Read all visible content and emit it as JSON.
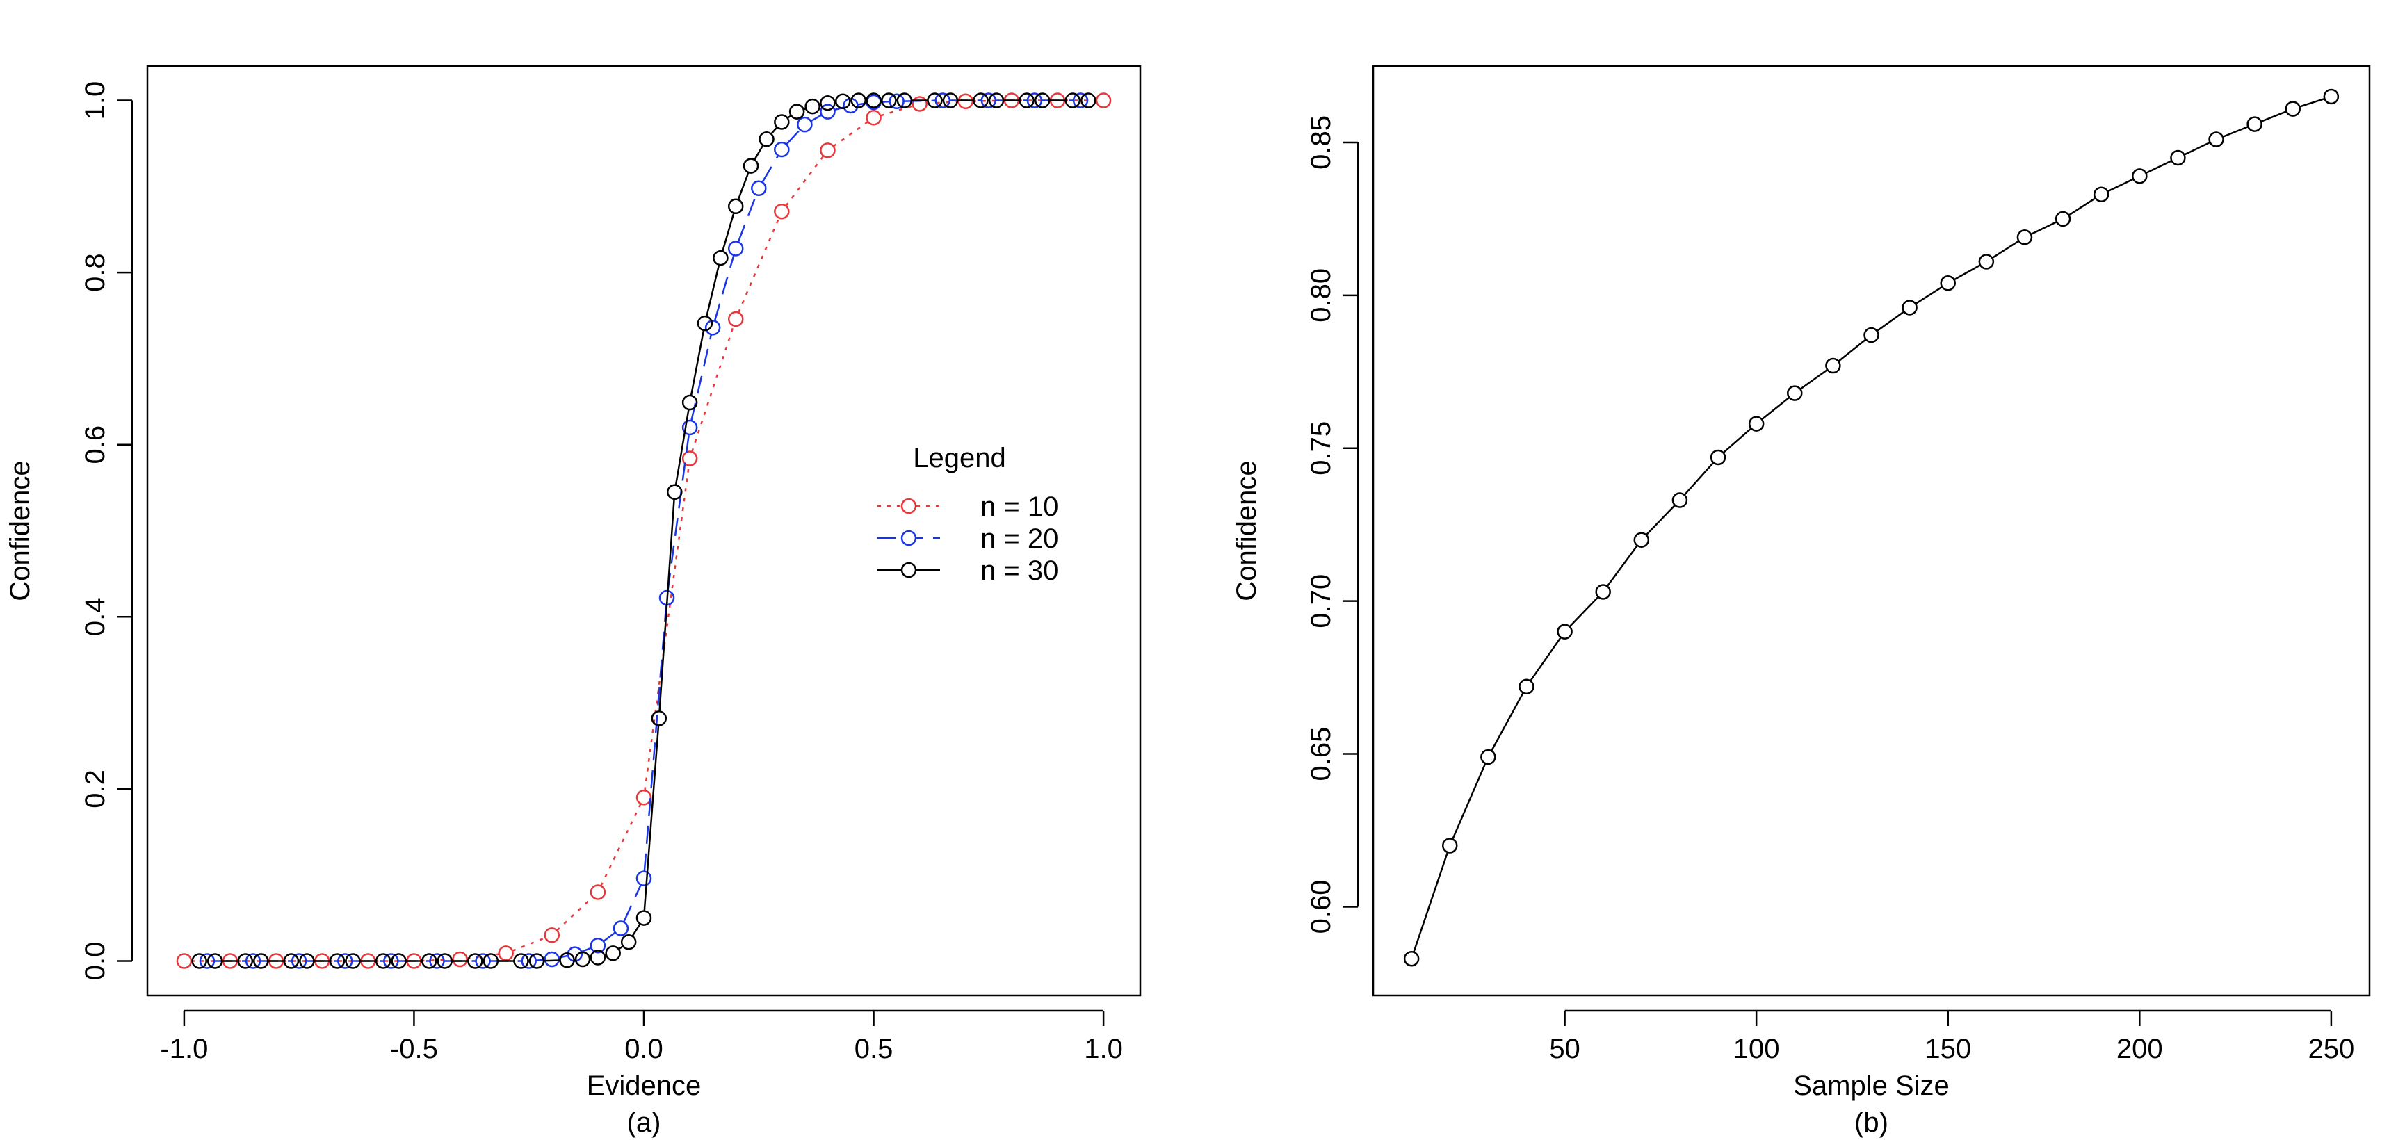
{
  "chart_data": [
    {
      "type": "line",
      "panel_label": "(a)",
      "title": "",
      "xlabel": "Evidence",
      "ylabel": "Confidence",
      "xlim": [
        -1.08,
        1.08
      ],
      "ylim": [
        -0.04,
        1.04
      ],
      "xticks": [
        -1.0,
        -0.5,
        0.0,
        0.5,
        1.0
      ],
      "xtick_labels": [
        "-1.0",
        "-0.5",
        "0.0",
        "0.5",
        "1.0"
      ],
      "yticks": [
        0.0,
        0.2,
        0.4,
        0.6,
        0.8,
        1.0
      ],
      "ytick_labels": [
        "0.0",
        "0.2",
        "0.4",
        "0.6",
        "0.8",
        "1.0"
      ],
      "grid": false,
      "legend": {
        "title": "Legend",
        "position": "center-right",
        "entries": [
          "n = 10",
          "n = 20",
          "n = 30"
        ]
      },
      "series": [
        {
          "name": "n = 10",
          "color": "#e8373a",
          "line_style": "dotted",
          "x": [
            -1.0,
            -0.9,
            -0.8,
            -0.7,
            -0.6,
            -0.5,
            -0.4,
            -0.3,
            -0.2,
            -0.1,
            0.0,
            0.1,
            0.2,
            0.3,
            0.4,
            0.5,
            0.6,
            0.7,
            0.8,
            0.9,
            1.0
          ],
          "y": [
            0.0,
            0.0,
            0.0,
            0.0,
            0.0,
            0.0,
            0.002,
            0.009,
            0.03,
            0.08,
            0.19,
            0.584,
            0.746,
            0.871,
            0.942,
            0.98,
            0.996,
            0.999,
            1.0,
            1.0,
            1.0
          ]
        },
        {
          "name": "n = 20",
          "color": "#1a35e8",
          "line_style": "dashed",
          "x": [
            -0.95,
            -0.85,
            -0.75,
            -0.65,
            -0.55,
            -0.45,
            -0.35,
            -0.25,
            -0.2,
            -0.15,
            -0.1,
            -0.05,
            0.0,
            0.05,
            0.1,
            0.15,
            0.2,
            0.25,
            0.3,
            0.35,
            0.4,
            0.45,
            0.5,
            0.55,
            0.65,
            0.75,
            0.85,
            0.95
          ],
          "y": [
            0.0,
            0.0,
            0.0,
            0.0,
            0.0,
            0.0,
            0.0,
            0.0,
            0.002,
            0.008,
            0.018,
            0.038,
            0.096,
            0.422,
            0.62,
            0.736,
            0.828,
            0.898,
            0.943,
            0.972,
            0.987,
            0.994,
            0.998,
            0.999,
            1.0,
            1.0,
            1.0,
            1.0
          ]
        },
        {
          "name": "n = 30",
          "color": "#000000",
          "line_style": "solid",
          "x": [
            -0.967,
            -0.933,
            -0.867,
            -0.833,
            -0.767,
            -0.733,
            -0.667,
            -0.633,
            -0.567,
            -0.533,
            -0.467,
            -0.433,
            -0.367,
            -0.333,
            -0.267,
            -0.233,
            -0.167,
            -0.133,
            -0.1,
            -0.067,
            -0.033,
            0.0,
            0.033,
            0.067,
            0.1,
            0.133,
            0.167,
            0.2,
            0.233,
            0.267,
            0.3,
            0.333,
            0.367,
            0.4,
            0.433,
            0.467,
            0.5,
            0.533,
            0.567,
            0.633,
            0.667,
            0.733,
            0.767,
            0.833,
            0.867,
            0.933,
            0.967
          ],
          "y": [
            0.0,
            0.0,
            0.0,
            0.0,
            0.0,
            0.0,
            0.0,
            0.0,
            0.0,
            0.0,
            0.0,
            0.0,
            0.0,
            0.0,
            0.0,
            0.0,
            0.001,
            0.002,
            0.004,
            0.009,
            0.022,
            0.05,
            0.282,
            0.545,
            0.649,
            0.741,
            0.817,
            0.877,
            0.924,
            0.955,
            0.975,
            0.987,
            0.993,
            0.997,
            0.999,
            1.0,
            1.0,
            1.0,
            1.0,
            1.0,
            1.0,
            1.0,
            1.0,
            1.0,
            1.0,
            1.0,
            1.0
          ]
        }
      ]
    },
    {
      "type": "line",
      "panel_label": "(b)",
      "title": "",
      "xlabel": "Sample Size",
      "ylabel": "Confidence",
      "xlim": [
        0,
        260
      ],
      "ylim": [
        0.571,
        0.875
      ],
      "xticks": [
        50,
        100,
        150,
        200,
        250
      ],
      "xtick_labels": [
        "50",
        "100",
        "150",
        "200",
        "250"
      ],
      "yticks": [
        0.6,
        0.65,
        0.7,
        0.75,
        0.8,
        0.85
      ],
      "ytick_labels": [
        "0.60",
        "0.65",
        "0.70",
        "0.75",
        "0.80",
        "0.85"
      ],
      "grid": false,
      "series": [
        {
          "name": "Confidence",
          "color": "#000000",
          "line_style": "solid",
          "x": [
            10,
            20,
            30,
            40,
            50,
            60,
            70,
            80,
            90,
            100,
            110,
            120,
            130,
            140,
            150,
            160,
            170,
            180,
            190,
            200,
            210,
            220,
            230,
            240,
            250
          ],
          "y": [
            0.583,
            0.62,
            0.649,
            0.672,
            0.69,
            0.703,
            0.72,
            0.733,
            0.747,
            0.758,
            0.768,
            0.777,
            0.787,
            0.796,
            0.804,
            0.811,
            0.819,
            0.825,
            0.833,
            0.839,
            0.845,
            0.851,
            0.856,
            0.861,
            0.865
          ]
        }
      ]
    }
  ]
}
